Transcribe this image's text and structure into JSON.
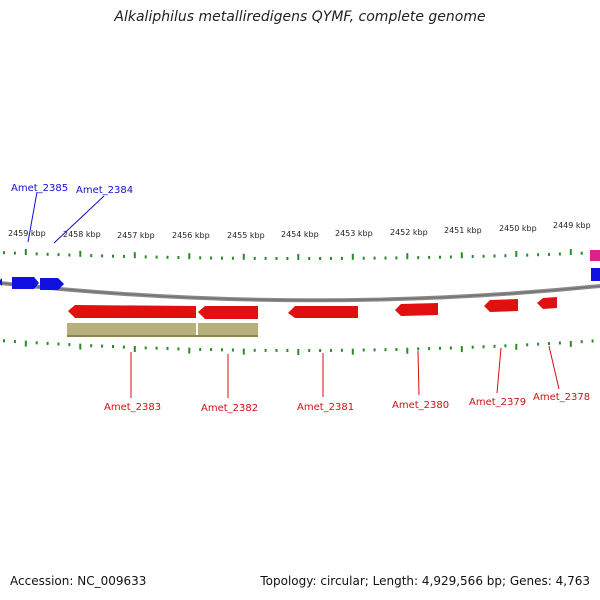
{
  "title": "Alkaliphilus metalliredigens QYMF, complete genome",
  "footer": {
    "accession": "Accession: NC_009633",
    "summary": "Topology: circular; Length: 4,929,566 bp; Genes: 4,763"
  },
  "colors": {
    "backbone": "#8a8a8a",
    "forward_gene": "#1010e0",
    "reverse_gene": "#e01010",
    "pink_feature": "#e0208a",
    "reverse_cds_band": "#b8b07a",
    "tick": "#2a8a2a",
    "label_blue": "#1010d0",
    "label_red": "#d01010"
  },
  "scale_labels": [
    "2459 kbp",
    "2458 kbp",
    "2457 kbp",
    "2456 kbp",
    "2455 kbp",
    "2454 kbp",
    "2453 kbp",
    "2452 kbp",
    "2451 kbp",
    "2450 kbp",
    "2449 kbp"
  ],
  "gene_labels_top": [
    "Amet_2385",
    "Amet_2384"
  ],
  "gene_labels_bottom": [
    "Amet_2383",
    "Amet_2382",
    "Amet_2381",
    "Amet_2380",
    "Amet_2379",
    "Amet_2378"
  ]
}
